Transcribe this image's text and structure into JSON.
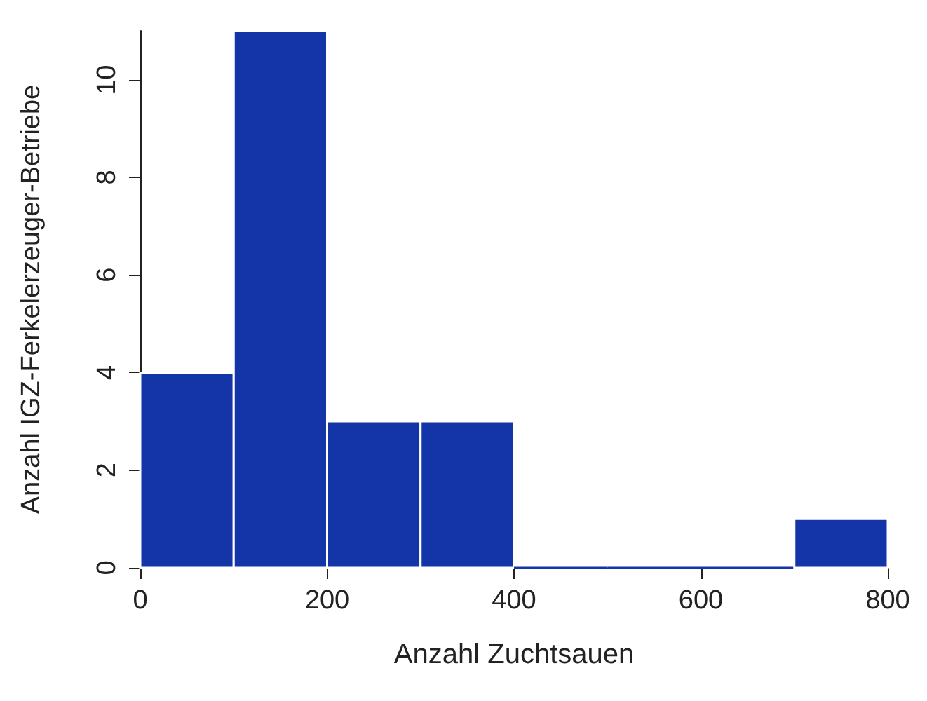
{
  "chart_data": {
    "type": "histogram",
    "xlabel": "Anzahl Zuchtsauen",
    "ylabel": "Anzahl IGZ-Ferkelerzeuger-Betriebe",
    "bins": [
      0,
      100,
      200,
      300,
      400,
      500,
      600,
      700,
      800
    ],
    "values": [
      4,
      11,
      3,
      3,
      0,
      0,
      0,
      1
    ],
    "color": "#1435a8",
    "xlim": [
      0,
      800
    ],
    "xticks": [
      0,
      200,
      400,
      600,
      800
    ],
    "ylim": [
      0,
      11
    ],
    "yticks": [
      0,
      2,
      4,
      6,
      8,
      10
    ],
    "grid": false
  }
}
